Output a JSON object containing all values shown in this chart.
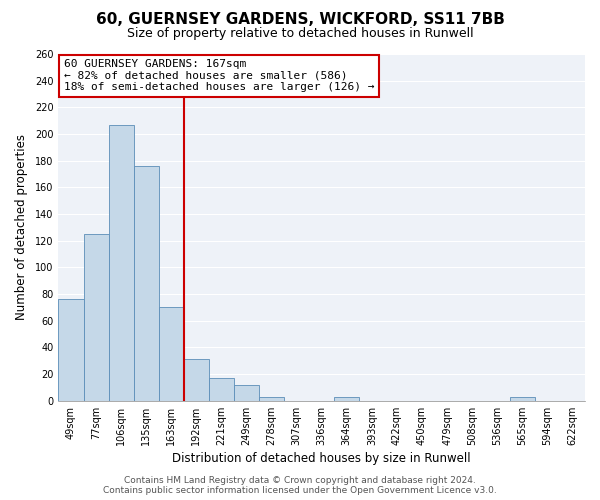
{
  "title": "60, GUERNSEY GARDENS, WICKFORD, SS11 7BB",
  "subtitle": "Size of property relative to detached houses in Runwell",
  "xlabel": "Distribution of detached houses by size in Runwell",
  "ylabel": "Number of detached properties",
  "bar_labels": [
    "49sqm",
    "77sqm",
    "106sqm",
    "135sqm",
    "163sqm",
    "192sqm",
    "221sqm",
    "249sqm",
    "278sqm",
    "307sqm",
    "336sqm",
    "364sqm",
    "393sqm",
    "422sqm",
    "450sqm",
    "479sqm",
    "508sqm",
    "536sqm",
    "565sqm",
    "594sqm",
    "622sqm"
  ],
  "bar_values": [
    76,
    125,
    207,
    176,
    70,
    31,
    17,
    12,
    3,
    0,
    0,
    3,
    0,
    0,
    0,
    0,
    0,
    0,
    3,
    0,
    0
  ],
  "bar_color": "#c5d8e8",
  "bar_edge_color": "#5b8db8",
  "vline_color": "#cc0000",
  "annotation_box_text": "60 GUERNSEY GARDENS: 167sqm\n← 82% of detached houses are smaller (586)\n18% of semi-detached houses are larger (126) →",
  "annotation_box_color": "#ffffff",
  "annotation_box_edge_color": "#cc0000",
  "ylim": [
    0,
    260
  ],
  "yticks": [
    0,
    20,
    40,
    60,
    80,
    100,
    120,
    140,
    160,
    180,
    200,
    220,
    240,
    260
  ],
  "footnote": "Contains HM Land Registry data © Crown copyright and database right 2024.\nContains public sector information licensed under the Open Government Licence v3.0.",
  "background_color": "#ffffff",
  "plot_bg_color": "#eef2f8",
  "grid_color": "#ffffff",
  "title_fontsize": 11,
  "subtitle_fontsize": 9,
  "axis_label_fontsize": 8.5,
  "tick_fontsize": 7,
  "annotation_fontsize": 8,
  "footnote_fontsize": 6.5
}
